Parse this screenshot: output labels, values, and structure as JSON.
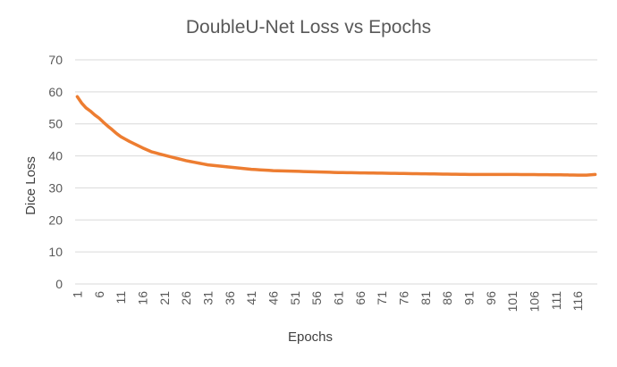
{
  "chart_data": {
    "type": "line",
    "title": "DoubleU-Net Loss vs Epochs",
    "xlabel": "Epochs",
    "ylabel": "Dice Loss",
    "ylim": [
      0,
      70
    ],
    "yticks": [
      "0",
      "10",
      "20",
      "30",
      "40",
      "50",
      "60",
      "70"
    ],
    "xticks": [
      "1",
      "6",
      "11",
      "16",
      "21",
      "26",
      "31",
      "36",
      "41",
      "46",
      "51",
      "56",
      "61",
      "66",
      "71",
      "76",
      "81",
      "86",
      "91",
      "96",
      "101",
      "106",
      "111",
      "116"
    ],
    "grid": true,
    "legend": "none",
    "color": "#ed7d31",
    "x_count": 120,
    "key_points": [
      [
        1,
        58.5
      ],
      [
        2,
        56.5
      ],
      [
        3,
        55.0
      ],
      [
        4,
        54.0
      ],
      [
        5,
        52.8
      ],
      [
        6,
        51.8
      ],
      [
        7,
        50.5
      ],
      [
        8,
        49.3
      ],
      [
        9,
        48.2
      ],
      [
        10,
        47.0
      ],
      [
        11,
        46.0
      ],
      [
        13,
        44.5
      ],
      [
        16,
        42.5
      ],
      [
        18,
        41.3
      ],
      [
        21,
        40.2
      ],
      [
        26,
        38.5
      ],
      [
        31,
        37.2
      ],
      [
        36,
        36.5
      ],
      [
        41,
        35.8
      ],
      [
        46,
        35.4
      ],
      [
        51,
        35.2
      ],
      [
        56,
        35.0
      ],
      [
        61,
        34.8
      ],
      [
        66,
        34.7
      ],
      [
        71,
        34.6
      ],
      [
        76,
        34.5
      ],
      [
        81,
        34.4
      ],
      [
        86,
        34.3
      ],
      [
        91,
        34.2
      ],
      [
        101,
        34.2
      ],
      [
        111,
        34.1
      ],
      [
        116,
        34.0
      ],
      [
        118,
        34.0
      ],
      [
        120,
        34.2
      ]
    ]
  }
}
